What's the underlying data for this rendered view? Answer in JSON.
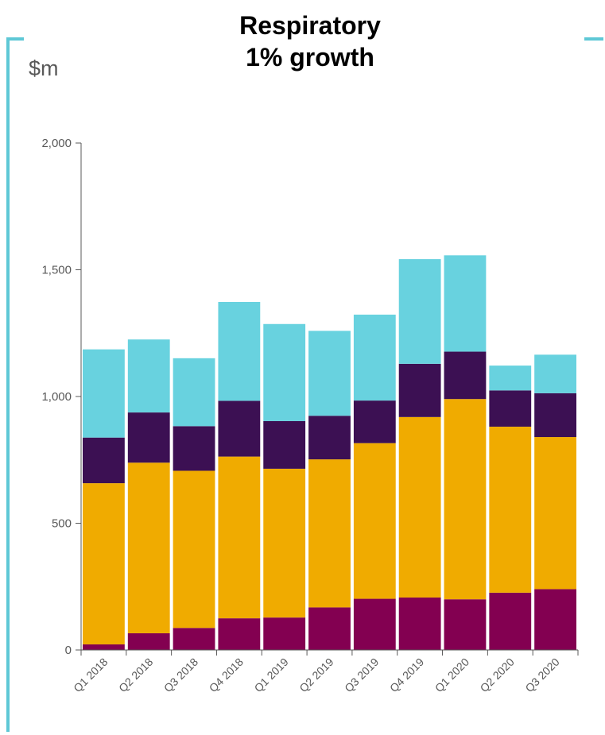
{
  "title_line1": "Respiratory",
  "title_line2": "1% growth",
  "unit_label": "$m",
  "colors": {
    "frame": "#5ec8d6",
    "series": [
      "#830051",
      "#f0ab00",
      "#3c1053",
      "#68d2df"
    ],
    "axis": "#595959",
    "text": "#595959"
  },
  "chart_data": {
    "type": "bar",
    "stacked": true,
    "title": "Respiratory 1% growth",
    "ylabel": "$m",
    "ylim": [
      0,
      2000
    ],
    "yticks": [
      0,
      500,
      1000,
      1500,
      2000
    ],
    "ytick_labels": [
      "0",
      "500",
      "1,000",
      "1,500",
      "2,000"
    ],
    "grid": false,
    "categories": [
      "Q1 2018",
      "Q2 2018",
      "Q3 2018",
      "Q4 2018",
      "Q1 2019",
      "Q2 2019",
      "Q3 2019",
      "Q4 2019",
      "Q1 2020",
      "Q2 2020",
      "Q3 2020"
    ],
    "series": [
      {
        "values": [
          22,
          66,
          87,
          125,
          128,
          168,
          202,
          207,
          200,
          226,
          240
        ]
      },
      {
        "values": [
          636,
          673,
          620,
          638,
          587,
          584,
          614,
          712,
          790,
          655,
          600
        ]
      },
      {
        "values": [
          180,
          198,
          176,
          220,
          188,
          172,
          168,
          210,
          187,
          143,
          173
        ]
      },
      {
        "values": [
          348,
          288,
          268,
          390,
          383,
          335,
          339,
          413,
          380,
          98,
          152
        ]
      }
    ]
  }
}
